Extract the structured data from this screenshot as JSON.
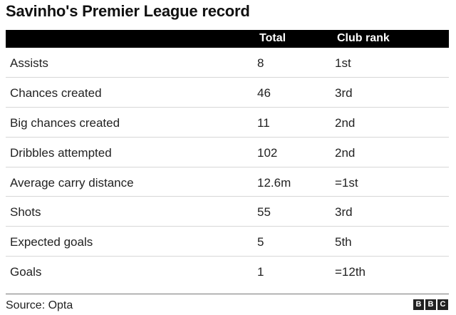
{
  "title": "Savinho's Premier League record",
  "headers": {
    "stat": "",
    "total": "Total",
    "rank": "Club rank"
  },
  "rows": [
    {
      "label": "Assists",
      "total": "8",
      "rank": "1st"
    },
    {
      "label": "Chances created",
      "total": "46",
      "rank": "3rd"
    },
    {
      "label": "Big chances created",
      "total": "11",
      "rank": "2nd"
    },
    {
      "label": "Dribbles attempted",
      "total": "102",
      "rank": "2nd"
    },
    {
      "label": "Average carry distance",
      "total": "12.6m",
      "rank": "=1st"
    },
    {
      "label": "Shots",
      "total": "55",
      "rank": "3rd"
    },
    {
      "label": "Expected goals",
      "total": "5",
      "rank": "5th"
    },
    {
      "label": "Goals",
      "total": "1",
      "rank": "=12th"
    }
  ],
  "source": "Source: Opta",
  "logo": {
    "letters": [
      "B",
      "B",
      "C"
    ]
  },
  "colors": {
    "header_bg": "#000000",
    "header_text": "#ffffff",
    "row_divider": "#d7d7d7"
  },
  "chart_data": {
    "type": "table",
    "title": "Savinho's Premier League record",
    "columns": [
      "",
      "Total",
      "Club rank"
    ],
    "rows": [
      [
        "Assists",
        "8",
        "1st"
      ],
      [
        "Chances created",
        "46",
        "3rd"
      ],
      [
        "Big chances created",
        "11",
        "2nd"
      ],
      [
        "Dribbles attempted",
        "102",
        "2nd"
      ],
      [
        "Average carry distance",
        "12.6m",
        "=1st"
      ],
      [
        "Shots",
        "55",
        "3rd"
      ],
      [
        "Expected goals",
        "5",
        "5th"
      ],
      [
        "Goals",
        "1",
        "=12th"
      ]
    ]
  }
}
